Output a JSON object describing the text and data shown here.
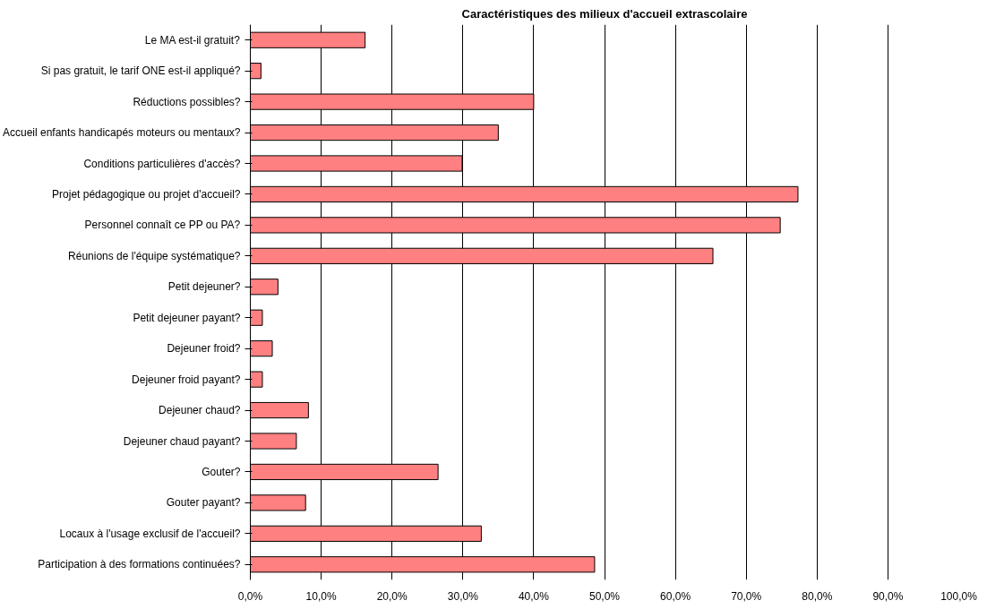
{
  "chart_data": {
    "type": "bar",
    "orientation": "horizontal",
    "title": "Caractéristiques des milieux d'accueil extrascolaire",
    "categories": [
      "Le MA est-il gratuit?",
      "Si pas gratuit, le tarif ONE est-il appliqué?",
      "Réductions possibles?",
      "Accueil enfants handicapés moteurs ou mentaux?",
      "Conditions particulières d'accès?",
      "Projet pédagogique ou projet d'accueil?",
      "Personnel connaît ce PP ou PA?",
      "Réunions de l'équipe systématique?",
      "Petit dejeuner?",
      "Petit dejeuner payant?",
      "Dejeuner froid?",
      "Dejeuner froid payant?",
      "Dejeuner chaud?",
      "Dejeuner chaud payant?",
      "Gouter?",
      "Gouter payant?",
      "Locaux à l'usage exclusif de l'accueil?",
      "Participation à des formations continuées?"
    ],
    "values": [
      16.2,
      1.5,
      40.0,
      35.0,
      29.9,
      77.3,
      74.8,
      65.3,
      3.9,
      1.7,
      3.1,
      1.7,
      8.2,
      6.5,
      26.5,
      7.8,
      32.6,
      48.6
    ],
    "color": "#ff8080",
    "xlim": [
      0,
      100
    ],
    "xticks": [
      {
        "value": 0,
        "label": "0,0%"
      },
      {
        "value": 10,
        "label": "10,0%"
      },
      {
        "value": 20,
        "label": "20,0%"
      },
      {
        "value": 30,
        "label": "30,0%"
      },
      {
        "value": 40,
        "label": "40,0%"
      },
      {
        "value": 50,
        "label": "50,0%"
      },
      {
        "value": 60,
        "label": "60,0%"
      },
      {
        "value": 70,
        "label": "70,0%"
      },
      {
        "value": 80,
        "label": "80,0%"
      },
      {
        "value": 90,
        "label": "90,0%"
      },
      {
        "value": 100,
        "label": "100,0%"
      }
    ],
    "grid": "x"
  }
}
